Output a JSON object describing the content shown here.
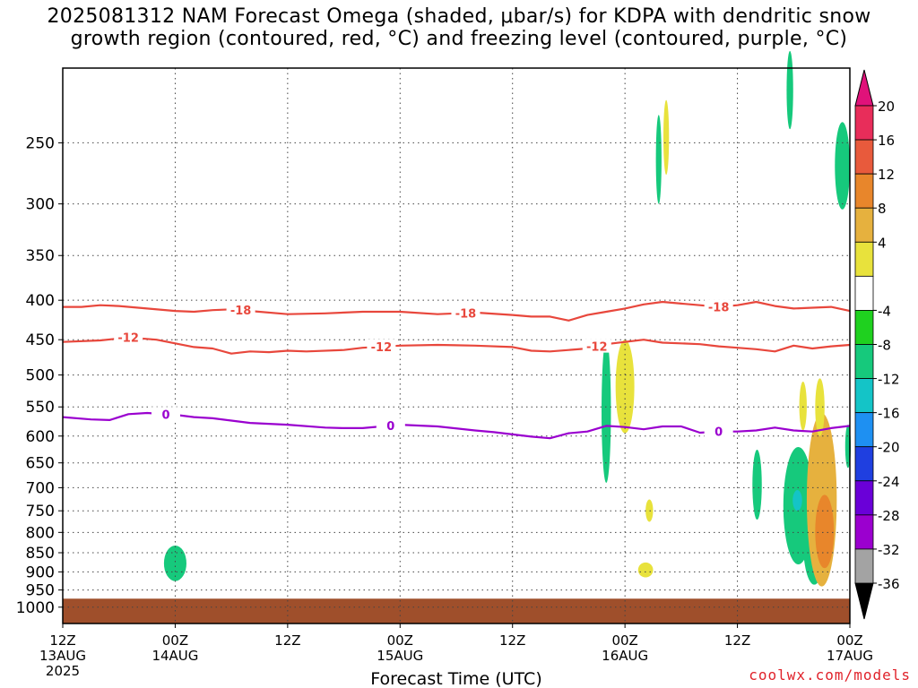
{
  "title": {
    "line1": "2025081312 NAM Forecast Omega (shaded, μbar/s) for KDPA with dendritic snow",
    "line2": "growth region (contoured, red, °C) and freezing level (contoured, purple, °C)"
  },
  "credit": "coolwx.com/models",
  "chart_data": {
    "type": "contour",
    "xlabel": "Forecast Time (UTC)",
    "ylabel": "",
    "x_unit": "hours since 2025-08-13 12Z",
    "xlim": [
      0,
      84
    ],
    "ylim_hpa": [
      1050,
      200
    ],
    "y_scale": "log-pressure",
    "grid": true,
    "x_ticks": [
      {
        "h": 0,
        "l1": "12Z",
        "l2": "13AUG",
        "l3": "2025"
      },
      {
        "h": 12,
        "l1": "00Z",
        "l2": "14AUG",
        "l3": ""
      },
      {
        "h": 24,
        "l1": "12Z",
        "l2": "",
        "l3": ""
      },
      {
        "h": 36,
        "l1": "00Z",
        "l2": "15AUG",
        "l3": ""
      },
      {
        "h": 48,
        "l1": "12Z",
        "l2": "",
        "l3": ""
      },
      {
        "h": 60,
        "l1": "00Z",
        "l2": "16AUG",
        "l3": ""
      },
      {
        "h": 72,
        "l1": "12Z",
        "l2": "",
        "l3": ""
      },
      {
        "h": 84,
        "l1": "00Z",
        "l2": "17AUG",
        "l3": ""
      }
    ],
    "y_ticks": [
      250,
      300,
      350,
      400,
      450,
      500,
      550,
      600,
      650,
      700,
      750,
      800,
      850,
      900,
      950,
      1000
    ],
    "contours": [
      {
        "name": "-18",
        "color": "#e8473c",
        "kind": "dgz",
        "points": [
          [
            0,
            408
          ],
          [
            2,
            408
          ],
          [
            4,
            406
          ],
          [
            6,
            407
          ],
          [
            9,
            410
          ],
          [
            12,
            413
          ],
          [
            14,
            414
          ],
          [
            16,
            412
          ],
          [
            18,
            411
          ],
          [
            20,
            413
          ],
          [
            24,
            417
          ],
          [
            28,
            416
          ],
          [
            32,
            414
          ],
          [
            36,
            414
          ],
          [
            40,
            417
          ],
          [
            44,
            415
          ],
          [
            48,
            418
          ],
          [
            50,
            420
          ],
          [
            52,
            420
          ],
          [
            54,
            425
          ],
          [
            56,
            418
          ],
          [
            58,
            414
          ],
          [
            60,
            410
          ],
          [
            62,
            405
          ],
          [
            64,
            402
          ],
          [
            66,
            404
          ],
          [
            68,
            406
          ],
          [
            70,
            408
          ],
          [
            72,
            406
          ],
          [
            74,
            402
          ],
          [
            76,
            407
          ],
          [
            78,
            410
          ],
          [
            80,
            409
          ],
          [
            82,
            408
          ],
          [
            84,
            413
          ]
        ],
        "labels": [
          [
            19,
            "-18"
          ],
          [
            43,
            "-18"
          ],
          [
            70,
            "-18"
          ]
        ]
      },
      {
        "name": "-12",
        "color": "#e8473c",
        "kind": "dgz",
        "points": [
          [
            0,
            453
          ],
          [
            4,
            451
          ],
          [
            7,
            447
          ],
          [
            10,
            450
          ],
          [
            12,
            455
          ],
          [
            14,
            460
          ],
          [
            16,
            462
          ],
          [
            18,
            469
          ],
          [
            20,
            466
          ],
          [
            22,
            467
          ],
          [
            24,
            465
          ],
          [
            26,
            466
          ],
          [
            30,
            464
          ],
          [
            32,
            461
          ],
          [
            36,
            458
          ],
          [
            40,
            457
          ],
          [
            44,
            458
          ],
          [
            48,
            460
          ],
          [
            50,
            465
          ],
          [
            52,
            466
          ],
          [
            54,
            464
          ],
          [
            56,
            462
          ],
          [
            58,
            456
          ],
          [
            60,
            453
          ],
          [
            62,
            450
          ],
          [
            64,
            454
          ],
          [
            66,
            455
          ],
          [
            68,
            456
          ],
          [
            70,
            459
          ],
          [
            72,
            461
          ],
          [
            74,
            463
          ],
          [
            76,
            466
          ],
          [
            78,
            458
          ],
          [
            80,
            462
          ],
          [
            82,
            459
          ],
          [
            84,
            457
          ]
        ],
        "labels": [
          [
            7,
            "-12"
          ],
          [
            34,
            "-12"
          ],
          [
            57,
            "-12"
          ]
        ]
      },
      {
        "name": "0",
        "color": "#9a00cf",
        "kind": "freezing",
        "points": [
          [
            0,
            567
          ],
          [
            3,
            571
          ],
          [
            5,
            572
          ],
          [
            7,
            562
          ],
          [
            9,
            560
          ],
          [
            12,
            563
          ],
          [
            14,
            567
          ],
          [
            16,
            569
          ],
          [
            18,
            573
          ],
          [
            20,
            577
          ],
          [
            24,
            580
          ],
          [
            28,
            585
          ],
          [
            30,
            586
          ],
          [
            32,
            586
          ],
          [
            34,
            583
          ],
          [
            36,
            580
          ],
          [
            40,
            583
          ],
          [
            44,
            590
          ],
          [
            46,
            593
          ],
          [
            48,
            597
          ],
          [
            50,
            601
          ],
          [
            52,
            604
          ],
          [
            54,
            595
          ],
          [
            56,
            592
          ],
          [
            58,
            582
          ],
          [
            60,
            584
          ],
          [
            62,
            588
          ],
          [
            64,
            583
          ],
          [
            66,
            583
          ],
          [
            68,
            594
          ],
          [
            70,
            592
          ],
          [
            72,
            592
          ],
          [
            74,
            590
          ],
          [
            76,
            585
          ],
          [
            78,
            590
          ],
          [
            80,
            592
          ],
          [
            82,
            586
          ],
          [
            84,
            582
          ]
        ],
        "labels": [
          [
            11,
            "0"
          ],
          [
            35,
            "0"
          ],
          [
            70,
            "0"
          ]
        ]
      }
    ],
    "omega_regions": [
      {
        "center": [
          12,
          880
        ],
        "half_width_h": 1.2,
        "top": 832,
        "bottom": 925,
        "level": "-8"
      },
      {
        "center": [
          58,
          560
        ],
        "half_width_h": 0.5,
        "top": 450,
        "bottom": 690,
        "level": "-8"
      },
      {
        "center": [
          60,
          545
        ],
        "half_width_h": 1.0,
        "top": 450,
        "bottom": 595,
        "level": "4"
      },
      {
        "center": [
          62.6,
          750
        ],
        "half_width_h": 0.4,
        "top": 725,
        "bottom": 775,
        "level": "4"
      },
      {
        "center": [
          62.2,
          895
        ],
        "half_width_h": 0.8,
        "top": 875,
        "bottom": 915,
        "level": "4"
      },
      {
        "center": [
          63.6,
          260
        ],
        "half_width_h": 0.3,
        "top": 230,
        "bottom": 300,
        "level": "-8"
      },
      {
        "center": [
          64.4,
          250
        ],
        "half_width_h": 0.3,
        "top": 220,
        "bottom": 275,
        "level": "4"
      },
      {
        "center": [
          74.1,
          700
        ],
        "half_width_h": 0.5,
        "top": 625,
        "bottom": 770,
        "level": "-8"
      },
      {
        "center": [
          78.5,
          760
        ],
        "half_width_h": 1.6,
        "top": 620,
        "bottom": 880,
        "level": "-8"
      },
      {
        "center": [
          80.2,
          850
        ],
        "half_width_h": 1.2,
        "top": 720,
        "bottom": 935,
        "level": "-8"
      },
      {
        "center": [
          78.4,
          725
        ],
        "half_width_h": 0.5,
        "top": 705,
        "bottom": 750,
        "level": "-12"
      },
      {
        "center": [
          81.0,
          760
        ],
        "half_width_h": 1.6,
        "top": 560,
        "bottom": 940,
        "level": "8"
      },
      {
        "center": [
          81.3,
          800
        ],
        "half_width_h": 1.0,
        "top": 715,
        "bottom": 890,
        "level": "12"
      },
      {
        "center": [
          79.0,
          545
        ],
        "half_width_h": 0.4,
        "top": 510,
        "bottom": 590,
        "level": "4"
      },
      {
        "center": [
          80.8,
          545
        ],
        "half_width_h": 0.5,
        "top": 505,
        "bottom": 600,
        "level": "4"
      },
      {
        "center": [
          83.2,
          280
        ],
        "half_width_h": 0.8,
        "top": 235,
        "bottom": 305,
        "level": "-8"
      },
      {
        "center": [
          83.8,
          610
        ],
        "half_width_h": 0.3,
        "top": 580,
        "bottom": 660,
        "level": "-8"
      },
      {
        "center": [
          77.6,
          208
        ],
        "half_width_h": 0.35,
        "top": 190,
        "bottom": 240,
        "level": "-8"
      }
    ],
    "terrain": {
      "top_hpa": 975,
      "color": "#9f4f2b"
    },
    "colorbar": {
      "labels": [
        "20",
        "16",
        "12",
        "8",
        "4",
        "-4",
        "-8",
        "-12",
        "-16",
        "-20",
        "-24",
        "-28",
        "-32",
        "-36"
      ],
      "levels": [
        {
          "name": "-36",
          "color": "#000000"
        },
        {
          "name": "-32",
          "color": "#a3a3a3"
        },
        {
          "name": "-28",
          "color": "#9b00cf"
        },
        {
          "name": "-24",
          "color": "#6a00d8"
        },
        {
          "name": "-20",
          "color": "#1f3fe0"
        },
        {
          "name": "-16",
          "color": "#1e90f2"
        },
        {
          "name": "-12",
          "color": "#14c4c7"
        },
        {
          "name": "-8",
          "color": "#16c97c"
        },
        {
          "name": "-4",
          "color": "#1fd11f"
        },
        {
          "name": "0",
          "color": "#ffffff"
        },
        {
          "name": "4",
          "color": "#e8e23c"
        },
        {
          "name": "8",
          "color": "#e6b13e"
        },
        {
          "name": "12",
          "color": "#e8862b"
        },
        {
          "name": "16",
          "color": "#e85a3c"
        },
        {
          "name": "20",
          "color": "#e82d5a"
        },
        {
          "name": ">20",
          "color": "#e0127a"
        }
      ]
    }
  }
}
